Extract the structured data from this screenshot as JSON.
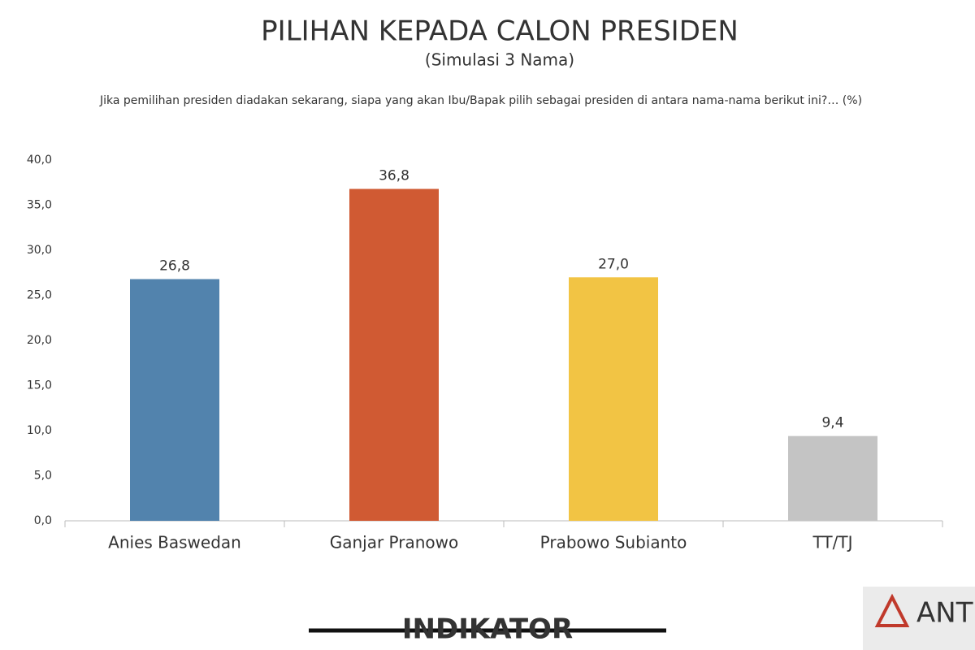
{
  "chart_data": {
    "type": "bar",
    "title": "PILIHAN KEPADA CALON PRESIDEN",
    "subtitle": "(Simulasi 3 Nama)",
    "question": "Jika pemilihan presiden diadakan sekarang, siapa yang akan Ibu/Bapak pilih sebagai presiden di antara nama-nama berikut ini?… (%)",
    "categories": [
      "Anies Baswedan",
      "Ganjar Pranowo",
      "Prabowo Subianto",
      "TT/TJ"
    ],
    "values": [
      26.8,
      36.8,
      27.0,
      9.4
    ],
    "value_labels": [
      "26,8",
      "36,8",
      "27,0",
      "9,4"
    ],
    "colors": [
      "#5283ad",
      "#d05a33",
      "#f2c444",
      "#c4c4c4"
    ],
    "ylim": [
      0,
      40
    ],
    "yticks": [
      {
        "value": 0,
        "label": "0,0"
      },
      {
        "value": 5,
        "label": "5,0"
      },
      {
        "value": 10,
        "label": "10,0"
      },
      {
        "value": 15,
        "label": "15,0"
      },
      {
        "value": 20,
        "label": "20,0"
      },
      {
        "value": 25,
        "label": "25,0"
      },
      {
        "value": 30,
        "label": "30,0"
      },
      {
        "value": 35,
        "label": "35,0"
      },
      {
        "value": 40,
        "label": "40,0"
      }
    ],
    "grid": false
  },
  "footer": {
    "logo": "INDIKATOR",
    "watermark": "ANT"
  }
}
